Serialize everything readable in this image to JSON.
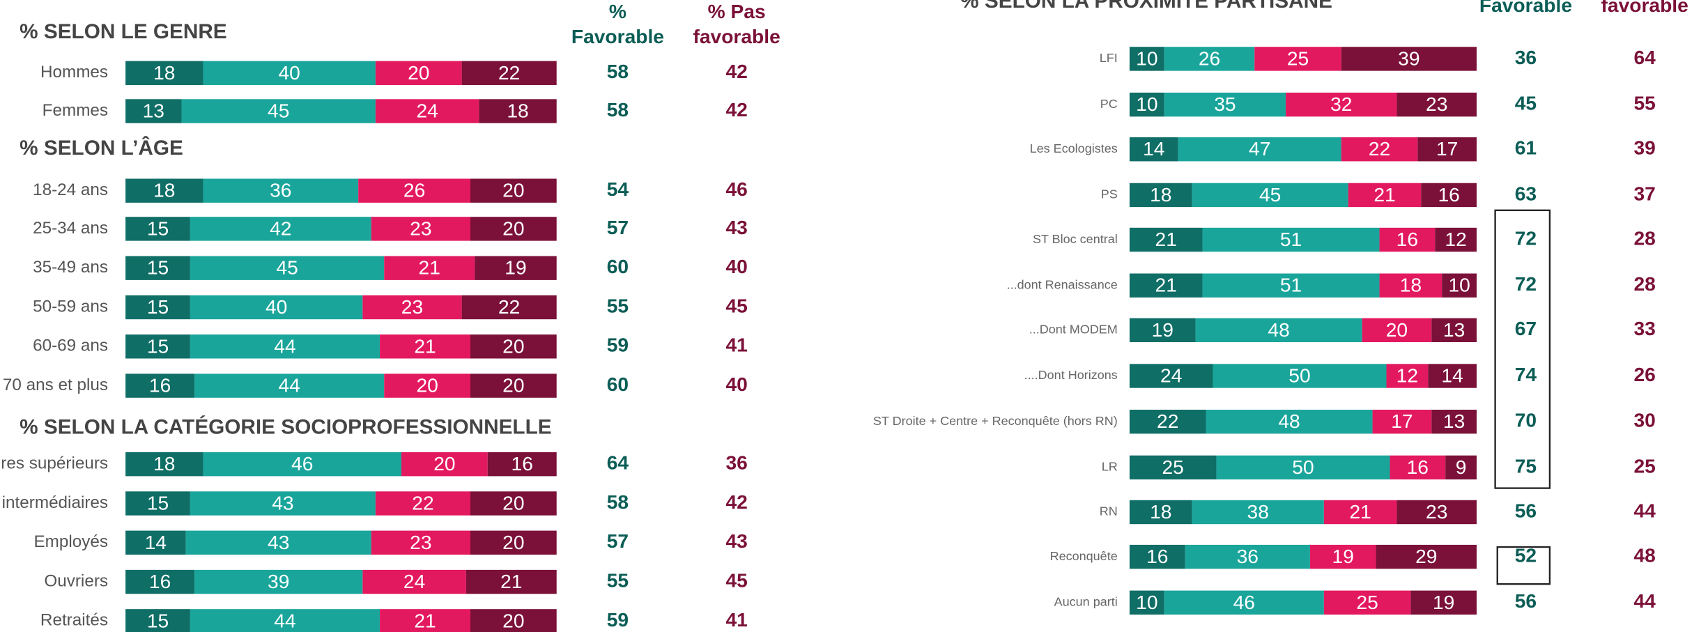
{
  "left": {
    "header_favorable": [
      "%",
      "Favorable"
    ],
    "header_pas": [
      "% Pas",
      "favorable"
    ],
    "xlim": [
      0,
      100
    ],
    "sections": [
      {
        "title": "% SELON LE GENRE",
        "rows": [
          {
            "label": "Hommes",
            "values": [
              18,
              40,
              20,
              22
            ],
            "favorable": 58,
            "pas_favorable": 42
          },
          {
            "label": "Femmes",
            "values": [
              13,
              45,
              24,
              18
            ],
            "favorable": 58,
            "pas_favorable": 42
          }
        ]
      },
      {
        "title": "% SELON L’ÂGE",
        "rows": [
          {
            "label": "18-24 ans",
            "values": [
              18,
              36,
              26,
              20
            ],
            "favorable": 54,
            "pas_favorable": 46
          },
          {
            "label": "25-34 ans",
            "values": [
              15,
              42,
              23,
              20
            ],
            "favorable": 57,
            "pas_favorable": 43
          },
          {
            "label": "35-49 ans",
            "values": [
              15,
              45,
              21,
              19
            ],
            "favorable": 60,
            "pas_favorable": 40
          },
          {
            "label": "50-59 ans",
            "values": [
              15,
              40,
              23,
              22
            ],
            "favorable": 55,
            "pas_favorable": 45
          },
          {
            "label": "60-69 ans",
            "values": [
              15,
              44,
              21,
              20
            ],
            "favorable": 59,
            "pas_favorable": 41
          },
          {
            "label": "70 ans et plus",
            "values": [
              16,
              44,
              20,
              20
            ],
            "favorable": 60,
            "pas_favorable": 40
          }
        ]
      },
      {
        "title": "% SELON LA CATÉGORIE SOCIOPROFESSIONNELLE",
        "rows": [
          {
            "label": "Cadres supérieurs",
            "values": [
              18,
              46,
              20,
              16
            ],
            "favorable": 64,
            "pas_favorable": 36
          },
          {
            "label": "Prof. intermédiaires",
            "values": [
              15,
              43,
              22,
              20
            ],
            "favorable": 58,
            "pas_favorable": 42
          },
          {
            "label": "Employés",
            "values": [
              14,
              43,
              23,
              20
            ],
            "favorable": 57,
            "pas_favorable": 43
          },
          {
            "label": "Ouvriers",
            "values": [
              16,
              39,
              24,
              21
            ],
            "favorable": 55,
            "pas_favorable": 45
          },
          {
            "label": "Retraités",
            "values": [
              15,
              44,
              21,
              20
            ],
            "favorable": 59,
            "pas_favorable": 41
          }
        ]
      }
    ]
  },
  "right": {
    "title": "% SELON LA PROXIMITÉ PARTISANE",
    "header_favorable": [
      "Favorable"
    ],
    "header_pas": [
      "favorable"
    ],
    "xlim": [
      0,
      100
    ],
    "rows": [
      {
        "label": "LFI",
        "values": [
          10,
          26,
          25,
          39
        ],
        "favorable": 36,
        "pas_favorable": 64
      },
      {
        "label": "PC",
        "values": [
          10,
          35,
          32,
          23
        ],
        "favorable": 45,
        "pas_favorable": 55
      },
      {
        "label": "Les Ecologistes",
        "values": [
          14,
          47,
          22,
          17
        ],
        "favorable": 61,
        "pas_favorable": 39
      },
      {
        "label": "PS",
        "values": [
          18,
          45,
          21,
          16
        ],
        "favorable": 63,
        "pas_favorable": 37
      },
      {
        "label": "ST Bloc central",
        "values": [
          21,
          51,
          16,
          12
        ],
        "favorable": 72,
        "pas_favorable": 28
      },
      {
        "label": "...dont Renaissance",
        "values": [
          21,
          51,
          18,
          10
        ],
        "favorable": 72,
        "pas_favorable": 28
      },
      {
        "label": "...Dont MODEM",
        "values": [
          19,
          48,
          20,
          13
        ],
        "favorable": 67,
        "pas_favorable": 33
      },
      {
        "label": "....Dont Horizons",
        "values": [
          24,
          50,
          12,
          14
        ],
        "favorable": 74,
        "pas_favorable": 26
      },
      {
        "label": "ST Droite + Centre + Reconquête (hors RN)",
        "values": [
          22,
          48,
          17,
          13
        ],
        "favorable": 70,
        "pas_favorable": 30
      },
      {
        "label": "LR",
        "values": [
          25,
          50,
          16,
          9
        ],
        "favorable": 75,
        "pas_favorable": 25
      },
      {
        "label": "RN",
        "values": [
          18,
          38,
          21,
          23
        ],
        "favorable": 56,
        "pas_favorable": 44
      },
      {
        "label": "Reconquête",
        "values": [
          16,
          36,
          19,
          29
        ],
        "favorable": 52,
        "pas_favorable": 48
      },
      {
        "label": "Aucun parti",
        "values": [
          10,
          46,
          25,
          19
        ],
        "favorable": 56,
        "pas_favorable": 44
      }
    ]
  },
  "colors": [
    "#0f6e66",
    "#1aa59b",
    "#e3195f",
    "#7b1138"
  ],
  "favorable_color": "#0b5d56",
  "pas_color": "#7b1138"
}
